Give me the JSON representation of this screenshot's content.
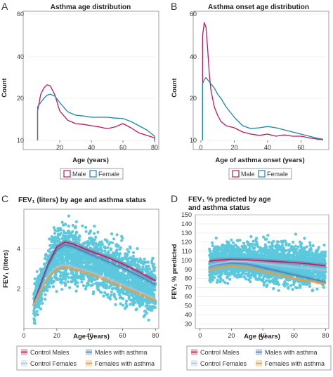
{
  "chart_data": [
    {
      "panel": "A",
      "type": "area",
      "title": "Asthma age distribution",
      "xlabel": "Age (years)",
      "ylabel": "Count",
      "xlim": [
        0,
        80
      ],
      "ylim": [
        10,
        60
      ],
      "xticks": [
        20,
        40,
        60,
        80
      ],
      "yticks": [
        10,
        20,
        40,
        60
      ],
      "ytick_labels": [
        "10",
        "20",
        "40",
        "60"
      ],
      "legend": {
        "placement": "bottom",
        "entries": [
          "Male",
          "Female"
        ]
      },
      "series": [
        {
          "name": "Male",
          "color": "#c2185b",
          "x": [
            6,
            8,
            10,
            12,
            14,
            17,
            20,
            25,
            30,
            35,
            40,
            45,
            50,
            55,
            60,
            65,
            70,
            75,
            80
          ],
          "y": [
            17,
            22,
            25,
            26.5,
            26,
            21.5,
            17,
            14.8,
            14,
            13.8,
            13.5,
            13.2,
            12.8,
            13.2,
            14,
            13,
            11.8,
            11.2,
            10.6
          ]
        },
        {
          "name": "Female",
          "color": "#1e88a8",
          "x": [
            6,
            8,
            10,
            12,
            14,
            17,
            20,
            25,
            30,
            35,
            40,
            45,
            50,
            55,
            60,
            65,
            70,
            75,
            80
          ],
          "y": [
            18,
            19,
            20,
            21.5,
            22,
            21,
            19,
            16.8,
            16,
            15.8,
            15.5,
            15.5,
            15.5,
            15.3,
            15.2,
            14.5,
            13.5,
            12.5,
            11
          ]
        }
      ]
    },
    {
      "panel": "B",
      "type": "area",
      "title": "Asthma onset age distribution",
      "xlabel": "Age of asthma onset (years)",
      "ylabel": "Count",
      "xlim": [
        0,
        75
      ],
      "ylim": [
        10,
        60
      ],
      "xticks": [
        0,
        20,
        40,
        60
      ],
      "yticks": [
        10,
        20,
        40,
        60
      ],
      "ytick_labels": [
        "10",
        "20",
        "40",
        "60"
      ],
      "legend": {
        "placement": "bottom",
        "entries": [
          "Male",
          "Female"
        ]
      },
      "series": [
        {
          "name": "Male",
          "color": "#c2185b",
          "x": [
            1,
            2,
            3,
            4,
            5,
            6,
            8,
            10,
            12,
            15,
            20,
            25,
            30,
            35,
            40,
            45,
            50,
            55,
            60,
            65,
            70,
            73
          ],
          "y": [
            50,
            56,
            54,
            44,
            32,
            24,
            18,
            16,
            14.5,
            13.5,
            13,
            12,
            11.5,
            11.2,
            11.5,
            11,
            11.3,
            11,
            11,
            10.6,
            10.3,
            10.2
          ]
        },
        {
          "name": "Female",
          "color": "#1e88a8",
          "x": [
            1,
            2,
            3,
            4,
            5,
            6,
            8,
            10,
            12,
            15,
            20,
            25,
            30,
            35,
            40,
            45,
            50,
            55,
            60,
            65,
            70,
            73
          ],
          "y": [
            27,
            29,
            30,
            29,
            28,
            27,
            25,
            22,
            20,
            18,
            15.5,
            13.5,
            12.8,
            13,
            13.3,
            13,
            12.5,
            12,
            11.5,
            11,
            10.5,
            10.3
          ]
        }
      ]
    },
    {
      "panel": "C",
      "type": "scatter",
      "title": "FEV₁ (liters) by age and asthma status",
      "xlabel": "Age (years)",
      "ylabel": "FEV₁ (liters)",
      "xlim": [
        0,
        82
      ],
      "ylim": [
        0,
        6
      ],
      "xticks": [
        0,
        20,
        40,
        60,
        80
      ],
      "yticks": [
        2,
        4
      ],
      "scatter_color": "#5bc8dd",
      "legend": {
        "placement": "bottom",
        "entries": [
          "Control Males",
          "Males with asthma",
          "Control Females",
          "Females with asthma"
        ]
      },
      "series": [
        {
          "name": "Control Males",
          "color": "#c2185b",
          "x": [
            6,
            10,
            15,
            20,
            25,
            30,
            40,
            50,
            60,
            70,
            80
          ],
          "y": [
            1.3,
            2.2,
            3.3,
            4.1,
            4.35,
            4.25,
            3.9,
            3.6,
            3.25,
            2.85,
            2.4
          ]
        },
        {
          "name": "Males with asthma",
          "color": "#4f7fb8",
          "x": [
            6,
            10,
            15,
            20,
            25,
            30,
            40,
            50,
            60,
            70,
            80
          ],
          "y": [
            1.25,
            2.1,
            3.2,
            3.95,
            4.2,
            4.1,
            3.75,
            3.4,
            3.05,
            2.65,
            2.2
          ]
        },
        {
          "name": "Control Females",
          "color": "#a9c4e4",
          "x": [
            6,
            10,
            15,
            20,
            25,
            30,
            40,
            50,
            60,
            70,
            80
          ],
          "y": [
            1.2,
            1.9,
            2.7,
            3.1,
            3.2,
            3.1,
            2.85,
            2.55,
            2.2,
            1.85,
            1.5
          ]
        },
        {
          "name": "Females with asthma",
          "color": "#f09a3a",
          "x": [
            6,
            10,
            15,
            20,
            25,
            30,
            40,
            50,
            60,
            70,
            80
          ],
          "y": [
            1.15,
            1.85,
            2.6,
            3.0,
            3.1,
            3.0,
            2.75,
            2.45,
            2.1,
            1.75,
            1.4
          ]
        }
      ]
    },
    {
      "panel": "D",
      "type": "scatter",
      "title_lines": [
        "FEV₁ % predicted by age",
        "and asthma status"
      ],
      "xlabel": "Age (years)",
      "ylabel": "FEV₁ % predicted",
      "xlim": [
        -3,
        82
      ],
      "ylim": [
        25,
        150
      ],
      "xticks": [
        0,
        20,
        40,
        60,
        80
      ],
      "yticks": [
        30,
        40,
        50,
        60,
        70,
        80,
        90,
        100,
        110,
        120,
        130,
        140,
        150
      ],
      "scatter_color": "#5bc8dd",
      "legend": {
        "placement": "bottom",
        "entries": [
          "Control Males",
          "Males with asthma",
          "Control Females",
          "Females with asthma"
        ]
      },
      "series": [
        {
          "name": "Control Males",
          "color": "#c2185b",
          "x": [
            6,
            10,
            20,
            30,
            40,
            50,
            60,
            70,
            80
          ],
          "y": [
            99,
            100,
            101,
            100.5,
            99.5,
            98.5,
            97.5,
            96,
            94
          ]
        },
        {
          "name": "Males with asthma",
          "color": "#4f7fb8",
          "x": [
            6,
            10,
            20,
            30,
            40,
            50,
            60,
            70,
            80
          ],
          "y": [
            93,
            95,
            97,
            96,
            92,
            88,
            84,
            80,
            76
          ]
        },
        {
          "name": "Control Females",
          "color": "#a9c4e4",
          "x": [
            6,
            10,
            20,
            30,
            40,
            50,
            60,
            70,
            80
          ],
          "y": [
            94,
            96,
            99,
            98.5,
            96.5,
            94.5,
            92.5,
            91,
            89
          ]
        },
        {
          "name": "Females with asthma",
          "color": "#f09a3a",
          "x": [
            6,
            10,
            20,
            30,
            40,
            50,
            60,
            70,
            80
          ],
          "y": [
            89,
            91,
            94,
            92,
            88,
            84,
            80,
            77,
            74
          ]
        }
      ]
    }
  ]
}
